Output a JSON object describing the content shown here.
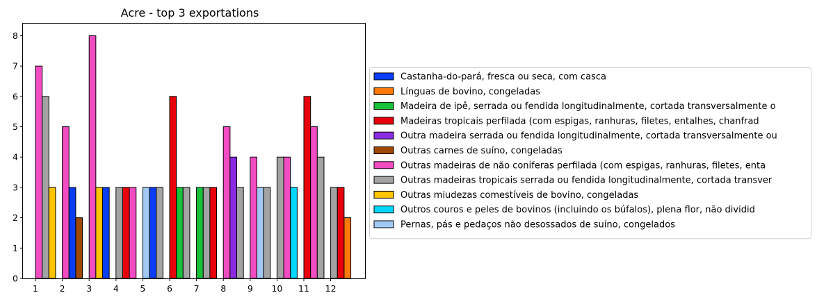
{
  "chart_data": {
    "type": "bar",
    "title": "Acre - top 3 exportations",
    "xlabel": "",
    "ylabel": "",
    "ylim": [
      0,
      8.4
    ],
    "yticks": [
      0,
      1,
      2,
      3,
      4,
      5,
      6,
      7,
      8
    ],
    "categories": [
      "1",
      "2",
      "3",
      "4",
      "5",
      "6",
      "7",
      "8",
      "9",
      "10",
      "11",
      "12"
    ],
    "legend_position": "right",
    "grid": false,
    "series": [
      {
        "name": "Castanha-do-pará, fresca ou seca, com casca",
        "color": "#0a3ef5",
        "values": [
          null,
          3,
          3,
          null,
          3,
          null,
          null,
          null,
          null,
          null,
          null,
          null
        ]
      },
      {
        "name": "Línguas de bovino, congeladas",
        "color": "#ff7a0a",
        "values": [
          null,
          null,
          null,
          null,
          null,
          null,
          null,
          null,
          null,
          null,
          null,
          2
        ]
      },
      {
        "name": "Madeira de ipê, serrada ou fendida longitudinalmente, cortada transversalmente o",
        "color": "#19c23a",
        "values": [
          null,
          null,
          null,
          null,
          null,
          3,
          3,
          null,
          null,
          null,
          null,
          null
        ]
      },
      {
        "name": "Madeiras tropicais perfilada (com espigas, ranhuras, filetes, entalhes, chanfrad",
        "color": "#e8000b",
        "values": [
          null,
          null,
          null,
          3,
          null,
          6,
          3,
          null,
          null,
          null,
          6,
          3
        ]
      },
      {
        "name": "Outra madeira serrada ou fendida longitudinalmente, cortada transversalmente ou",
        "color": "#8a2be2",
        "values": [
          null,
          null,
          null,
          null,
          null,
          null,
          null,
          4,
          null,
          null,
          null,
          null
        ]
      },
      {
        "name": "Outras carnes de suíno, congeladas",
        "color": "#9f4800",
        "values": [
          null,
          2,
          null,
          null,
          null,
          null,
          null,
          null,
          null,
          null,
          null,
          null
        ]
      },
      {
        "name": "Outras madeiras de não coníferas perfilada (com espigas, ranhuras, filetes, enta",
        "color": "#f14cc1",
        "values": [
          7,
          5,
          8,
          3,
          null,
          null,
          null,
          5,
          4,
          4,
          5,
          null
        ]
      },
      {
        "name": "Outras madeiras tropicais serrada ou fendida longitudinalmente, cortada transver",
        "color": "#a3a3a3",
        "values": [
          6,
          null,
          null,
          3,
          3,
          3,
          3,
          3,
          3,
          4,
          4,
          3
        ]
      },
      {
        "name": "Outras miudezas comestíveis de bovino, congeladas",
        "color": "#ffc400",
        "values": [
          3,
          null,
          3,
          null,
          null,
          null,
          null,
          null,
          null,
          null,
          null,
          null
        ]
      },
      {
        "name": "Outros couros e peles de bovinos (incluindo os búfalos), plena flor, não dividid",
        "color": "#00d7ff",
        "values": [
          null,
          null,
          null,
          null,
          null,
          null,
          null,
          null,
          null,
          3,
          null,
          null
        ]
      },
      {
        "name": "Pernas, pás e pedaços não desossados de suíno, congelados",
        "color": "#a1c9f4",
        "values": [
          null,
          null,
          null,
          null,
          3,
          null,
          null,
          null,
          3,
          null,
          null,
          null
        ]
      }
    ],
    "bar_order": [
      [
        "Outras madeiras de não coníferas perfilada (com espigas, ranhuras, filetes, enta",
        "Outras madeiras tropicais serrada ou fendida longitudinalmente, cortada transver",
        "Outras miudezas comestíveis de bovino, congeladas"
      ],
      [
        "Outras madeiras de não coníferas perfilada (com espigas, ranhuras, filetes, enta",
        "Castanha-do-pará, fresca ou seca, com casca",
        "Outras carnes de suíno, congeladas"
      ],
      [
        "Outras madeiras de não coníferas perfilada (com espigas, ranhuras, filetes, enta",
        "Outras miudezas comestíveis de bovino, congeladas",
        "Castanha-do-pará, fresca ou seca, com casca"
      ],
      [
        "Outras madeiras tropicais serrada ou fendida longitudinalmente, cortada transver",
        "Madeiras tropicais perfilada (com espigas, ranhuras, filetes, entalhes, chanfrad",
        "Outras madeiras de não coníferas perfilada (com espigas, ranhuras, filetes, enta"
      ],
      [
        "Pernas, pás e pedaços não desossados de suíno, congelados",
        "Castanha-do-pará, fresca ou seca, com casca",
        "Outras madeiras tropicais serrada ou fendida longitudinalmente, cortada transver"
      ],
      [
        "Madeiras tropicais perfilada (com espigas, ranhuras, filetes, entalhes, chanfrad",
        "Madeira de ipê, serrada ou fendida longitudinalmente, cortada transversalmente o",
        "Outras madeiras tropicais serrada ou fendida longitudinalmente, cortada transver"
      ],
      [
        "Madeira de ipê, serrada ou fendida longitudinalmente, cortada transversalmente o",
        "Outras madeiras tropicais serrada ou fendida longitudinalmente, cortada transver",
        "Madeiras tropicais perfilada (com espigas, ranhuras, filetes, entalhes, chanfrad"
      ],
      [
        "Outras madeiras de não coníferas perfilada (com espigas, ranhuras, filetes, enta",
        "Outra madeira serrada ou fendida longitudinalmente, cortada transversalmente ou",
        "Outras madeiras tropicais serrada ou fendida longitudinalmente, cortada transver"
      ],
      [
        "Outras madeiras de não coníferas perfilada (com espigas, ranhuras, filetes, enta",
        "Pernas, pás e pedaços não desossados de suíno, congelados",
        "Outras madeiras tropicais serrada ou fendida longitudinalmente, cortada transver"
      ],
      [
        "Outras madeiras tropicais serrada ou fendida longitudinalmente, cortada transver",
        "Outras madeiras de não coníferas perfilada (com espigas, ranhuras, filetes, enta",
        "Outros couros e peles de bovinos (incluindo os búfalos), plena flor, não dividid"
      ],
      [
        "Madeiras tropicais perfilada (com espigas, ranhuras, filetes, entalhes, chanfrad",
        "Outras madeiras de não coníferas perfilada (com espigas, ranhuras, filetes, enta",
        "Outras madeiras tropicais serrada ou fendida longitudinalmente, cortada transver"
      ],
      [
        "Outras madeiras tropicais serrada ou fendida longitudinalmente, cortada transver",
        "Madeiras tropicais perfilada (com espigas, ranhuras, filetes, entalhes, chanfrad",
        "Línguas de bovino, congeladas"
      ]
    ]
  }
}
